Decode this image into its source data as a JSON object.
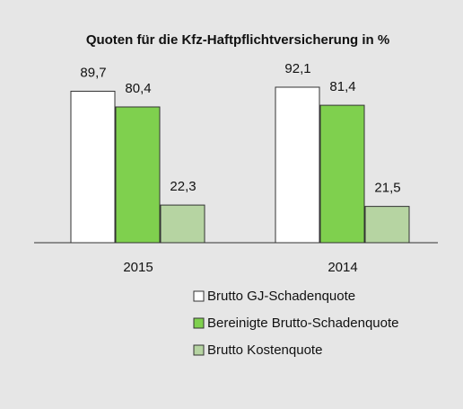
{
  "chart_data": {
    "type": "bar",
    "title": "Quoten für die Kfz-Haftpflichtversicherung in %",
    "categories": [
      "2015",
      "2014"
    ],
    "series": [
      {
        "name": "Brutto GJ-Schadenquote",
        "color": "#ffffff",
        "values": [
          89.7,
          92.1
        ],
        "value_labels": [
          "89,7",
          "92,1"
        ]
      },
      {
        "name": "Bereinigte Brutto-Schadenquote",
        "color": "#7fd04e",
        "values": [
          80.4,
          81.4
        ],
        "value_labels": [
          "80,4",
          "81,4"
        ]
      },
      {
        "name": "Brutto Kostenquote",
        "color": "#b6d4a2",
        "values": [
          22.3,
          21.5
        ],
        "value_labels": [
          "22,3",
          "21,5"
        ]
      }
    ]
  }
}
